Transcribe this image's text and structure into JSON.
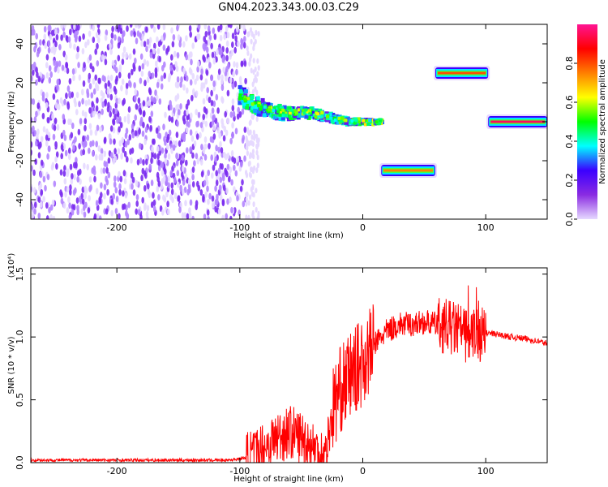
{
  "title": "GN04.2023.343.00.03.C29",
  "chart_data": [
    {
      "type": "heatmap",
      "xlabel": "Height of straight line (km)",
      "ylabel": "Frequency (Hz)",
      "xlim": [
        -270,
        150
      ],
      "ylim": [
        -50,
        50
      ],
      "x_ticks": [
        -200,
        -100,
        0,
        100
      ],
      "x_tick_labels": [
        "-200",
        "-100",
        "0",
        "100"
      ],
      "y_ticks": [
        -40,
        -20,
        0,
        20,
        40
      ],
      "y_tick_labels": [
        "-40",
        "-20",
        "0",
        "20",
        "40"
      ],
      "colorbar": {
        "label": "Normalized spectral amplitude",
        "range": [
          0,
          1
        ],
        "ticks": [
          0.0,
          0.2,
          0.4,
          0.6,
          0.8
        ],
        "tick_labels": [
          "0.0",
          "0.2",
          "0.4",
          "0.6",
          "0.8"
        ],
        "colors": [
          "#e6d9ff",
          "#8a2be2",
          "#3b00ff",
          "#00ffff",
          "#00ff00",
          "#ffff00",
          "#ff7f00",
          "#ff0000",
          "#ff1493"
        ]
      },
      "regions": [
        {
          "kind": "noise",
          "x": [
            -270,
            -95
          ],
          "y": [
            -50,
            50
          ],
          "amplitude": 0.1
        },
        {
          "kind": "trail",
          "points": [
            [
              -100,
              14
            ],
            [
              -90,
              9
            ],
            [
              -80,
              7
            ],
            [
              -70,
              5
            ],
            [
              -60,
              4
            ],
            [
              -50,
              5
            ],
            [
              -40,
              4
            ],
            [
              -30,
              3
            ],
            [
              -20,
              1
            ],
            [
              -10,
              0
            ],
            [
              0,
              0
            ],
            [
              10,
              0
            ],
            [
              16,
              0
            ]
          ],
          "amplitude": 0.5
        },
        {
          "kind": "band",
          "x": [
            15,
            59
          ],
          "y": -25,
          "amplitude": 0.75
        },
        {
          "kind": "band",
          "x": [
            59,
            102
          ],
          "y": 25,
          "amplitude": 0.8
        },
        {
          "kind": "band",
          "x": [
            102,
            150
          ],
          "y": 0,
          "amplitude": 0.95
        }
      ]
    },
    {
      "type": "line",
      "xlabel": "Height of straight line (km)",
      "ylabel": "SNR (10 * v/v)",
      "y_multiplier": "(x10⁴)",
      "xlim": [
        -270,
        150
      ],
      "ylim": [
        0,
        1.55
      ],
      "x_ticks": [
        -200,
        -100,
        0,
        100
      ],
      "x_tick_labels": [
        "-200",
        "-100",
        "0",
        "100"
      ],
      "y_ticks": [
        0.0,
        0.5,
        1.0,
        1.5
      ],
      "y_tick_labels": [
        "0.0",
        "0.5",
        "1.0",
        "1.5"
      ],
      "series": [
        {
          "color": "#ff0000",
          "x": [
            -270,
            -200,
            -110,
            -100,
            -90,
            -80,
            -70,
            -60,
            -50,
            -40,
            -35,
            -30,
            -25,
            -20,
            -10,
            0,
            10,
            20,
            30,
            40,
            50,
            60,
            70,
            80,
            85,
            90,
            95,
            100,
            110,
            120,
            130,
            140,
            150
          ],
          "values": [
            0.02,
            0.02,
            0.02,
            0.03,
            0.05,
            0.12,
            0.2,
            0.25,
            0.2,
            0.12,
            0.08,
            0.06,
            0.4,
            0.55,
            0.7,
            0.8,
            0.95,
            1.05,
            1.1,
            1.1,
            1.12,
            1.1,
            1.08,
            1.05,
            1.0,
            1.0,
            1.02,
            1.03,
            1.02,
            1.0,
            0.99,
            0.97,
            0.95
          ]
        }
      ]
    }
  ]
}
